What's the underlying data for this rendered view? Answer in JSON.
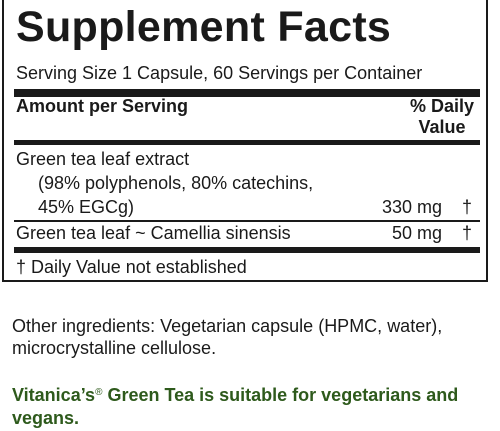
{
  "panel": {
    "title": "Supplement Facts",
    "serving_line": "Serving Size 1 Capsule, 60 Servings per Container",
    "header_left": "Amount per Serving",
    "header_right_line1": "% Daily",
    "header_right_line2": "Value",
    "items": [
      {
        "name_line1": "Green tea leaf extract",
        "name_line2": "(98% polyphenols, 80% catechins,",
        "name_line3": "45% EGCg)",
        "amount": "330 mg",
        "dv": "†"
      },
      {
        "name_line1": "Green tea leaf ~ Camellia sinensis",
        "amount": "50 mg",
        "dv": "†"
      }
    ],
    "footnote": "† Daily Value not established"
  },
  "other_ingredients": "Other ingredients: Vegetarian capsule (HPMC, water), microcrystalline cellulose.",
  "tagline": {
    "brand": "Vitanica’s",
    "mark": "®",
    "text": " Green Tea is suitable for vegetarians and vegans."
  },
  "colors": {
    "text": "#1a1a1a",
    "tagline_green": "#2e5a1c"
  }
}
